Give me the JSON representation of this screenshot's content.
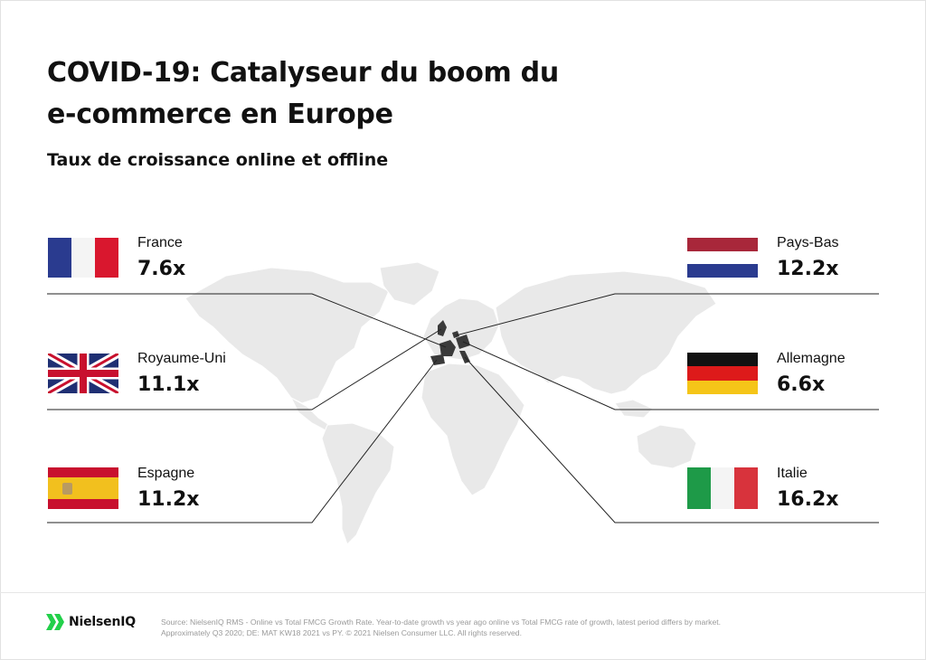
{
  "title_line1": "COVID-19: Catalyseur du boom du",
  "title_line2": "e-commerce en Europe",
  "subtitle": "Taux de croissance online et offline",
  "countries": [
    {
      "name": "France",
      "value": "7.6x",
      "flag": "france-flag-icon"
    },
    {
      "name": "Royaume-Uni",
      "value": "11.1x",
      "flag": "uk-flag-icon"
    },
    {
      "name": "Espagne",
      "value": "11.2x",
      "flag": "spain-flag-icon"
    },
    {
      "name": "Pays-Bas",
      "value": "12.2x",
      "flag": "netherlands-flag-icon"
    },
    {
      "name": "Allemagne",
      "value": "6.6x",
      "flag": "germany-flag-icon"
    },
    {
      "name": "Italie",
      "value": "16.2x",
      "flag": "italy-flag-icon"
    }
  ],
  "footer": {
    "logo_text": "NielsenIQ",
    "source_line1": "Source: NielsenIQ RMS - Online vs Total FMCG Growth Rate. Year-to-date growth vs year ago online vs Total FMCG rate of growth, latest period differs by market.",
    "source_line2": "Approximately Q3 2020; DE: MAT KW18 2021 vs PY. © 2021 Nielsen Consumer LLC. All rights reserved."
  },
  "colors": {
    "map_land": "#e9e9e9",
    "map_border": "#ffffff",
    "highlight": "#3a3a3a",
    "leader_line": "#222222",
    "logo_green": "#22d04a",
    "footer_text": "#9a9a9a"
  }
}
